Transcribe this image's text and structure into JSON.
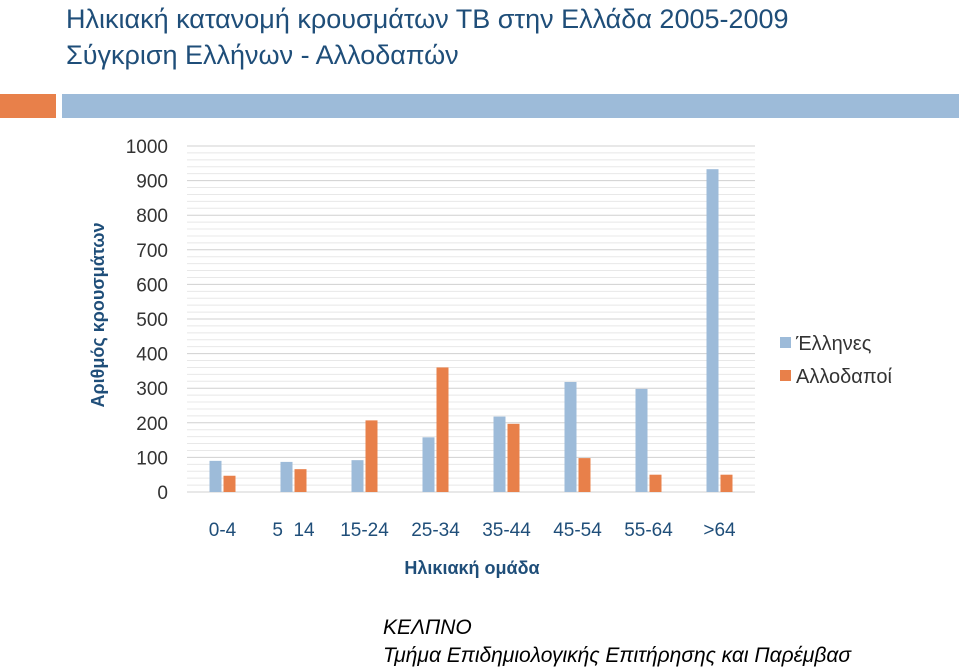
{
  "slide": {
    "title": "Ηλικιακή κατανομή κρουσμάτων ΤΒ στην Ελλάδα  2005-2009",
    "subtitle": "Σύγκριση Ελλήνων - Αλλοδαπών",
    "footer_org": "ΚΕΛΠΝΟ",
    "footer_dept": "Τμήμα Επιδημιολογικής Επιτήρησης και Παρέμβασ"
  },
  "colors": {
    "title": "#1f4e79",
    "greeks": "#9dbbd9",
    "foreigners": "#e8804a"
  },
  "chart_data": {
    "type": "bar",
    "title": "",
    "xlabel": "Ηλικιακή ομάδα",
    "ylabel": "Αριθμός κρουσμάτων",
    "categories": [
      "0-4",
      "5  14",
      "15-24",
      "25-34",
      "35-44",
      "45-54",
      "55-64",
      ">64"
    ],
    "series": [
      {
        "name": "Έλληνες",
        "color": "#9dbbd9",
        "values": [
          90,
          87,
          92,
          158,
          218,
          318,
          298,
          933
        ]
      },
      {
        "name": "Αλλοδαποί",
        "color": "#e8804a",
        "values": [
          47,
          66,
          207,
          360,
          197,
          98,
          50,
          50
        ]
      }
    ],
    "ylim": [
      0,
      1000
    ],
    "yticks": [
      0,
      100,
      200,
      300,
      400,
      500,
      600,
      700,
      800,
      900,
      1000
    ],
    "grid": true,
    "legend_position": "right"
  }
}
